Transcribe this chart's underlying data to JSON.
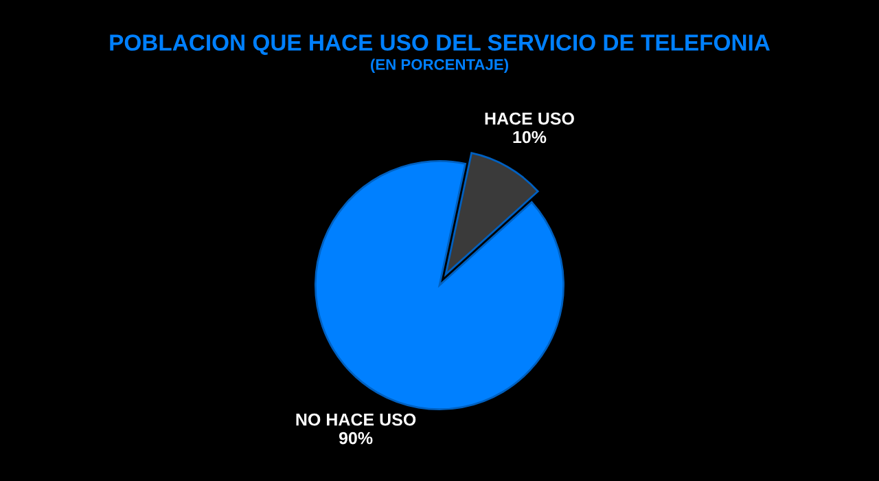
{
  "chart_data": {
    "type": "pie",
    "title": "POBLACION QUE HACE USO DEL SERVICIO DE TELEFONIA",
    "subtitle": "(EN PORCENTAJE)",
    "categories": [
      "HACE USO",
      "NO HACE USO"
    ],
    "values": [
      10,
      90
    ],
    "colors": [
      "#3a3a3a",
      "#0080ff"
    ],
    "value_labels": [
      "10%",
      "90%"
    ]
  }
}
